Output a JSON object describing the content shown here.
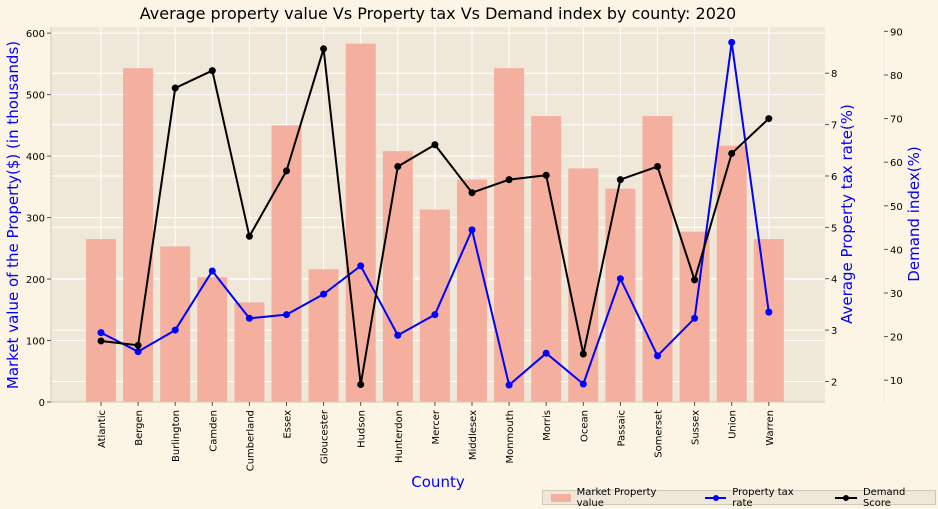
{
  "chart_data": {
    "type": "bar",
    "title": "Average property value Vs Property tax Vs Demand index by county: 2020",
    "xlabel": "County",
    "ylabel_left": "Market value of the Property($) (in thousands)",
    "ylabel_right1": "Average Property tax rate(%)",
    "ylabel_right2": "Demand index(%)",
    "categories": [
      "Atlantic",
      "Bergen",
      "Burlington",
      "Camden",
      "Cumberland",
      "Essex",
      "Gloucester",
      "Hudson",
      "Hunterdon",
      "Mercer",
      "Middlesex",
      "Monmouth",
      "Morris",
      "Ocean",
      "Passaic",
      "Somerset",
      "Sussex",
      "Union",
      "Warren"
    ],
    "series": [
      {
        "name": "Market Property value",
        "axis": "left",
        "type": "bar",
        "color": "#f4a898",
        "values": [
          265,
          543,
          253,
          203,
          162,
          450,
          216,
          583,
          408,
          313,
          362,
          543,
          465,
          380,
          347,
          465,
          277,
          417,
          265
        ]
      },
      {
        "name": "Property tax rate",
        "axis": "right1",
        "type": "line",
        "color": "#0000ff",
        "values": [
          2.95,
          2.58,
          3.0,
          4.15,
          3.23,
          3.3,
          3.7,
          4.25,
          2.9,
          3.3,
          4.95,
          1.93,
          2.55,
          1.95,
          4.0,
          2.5,
          3.23,
          8.6,
          3.35
        ]
      },
      {
        "name": "Demand Score",
        "axis": "right2",
        "type": "line",
        "color": "#000000",
        "values": [
          19,
          18,
          77,
          81,
          43,
          58,
          86,
          9,
          59,
          64,
          53,
          56,
          57,
          16,
          56,
          59,
          33,
          62,
          70
        ]
      }
    ],
    "ylim_left": [
      0,
      610
    ],
    "yticks_left": [
      0,
      100,
      200,
      300,
      400,
      500,
      600
    ],
    "ylim_right1": [
      1.6,
      8.9
    ],
    "yticks_right1": [
      2,
      3,
      4,
      5,
      6,
      7,
      8
    ],
    "ylim_right2": [
      5,
      91
    ],
    "yticks_right2": [
      10,
      20,
      30,
      40,
      50,
      60,
      70,
      80,
      90
    ],
    "grid": true,
    "legend_position": "bottom-right"
  }
}
